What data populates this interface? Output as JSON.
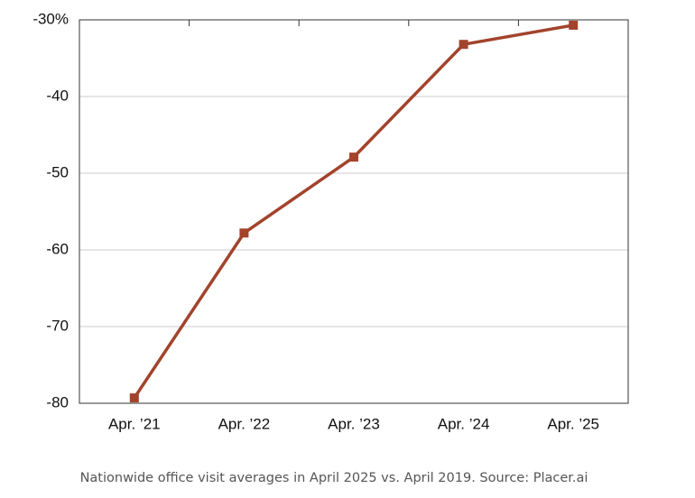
{
  "chart_data": {
    "type": "line",
    "categories": [
      "Apr. ’21",
      "Apr. ’22",
      "Apr. ’23",
      "Apr. ’24",
      "Apr. ’25"
    ],
    "values": [
      -79.3,
      -57.8,
      -47.9,
      -33.2,
      -30.7
    ],
    "color": "#a3432c",
    "ylim": [
      -80,
      -30
    ],
    "yticks": [
      {
        "value": -30,
        "label": "-30%"
      },
      -40,
      -50,
      -60,
      -70,
      -80
    ],
    "grid": true,
    "caption": "Nationwide office visit averages in April 2025 vs. April 2019. Source: Placer.ai"
  }
}
